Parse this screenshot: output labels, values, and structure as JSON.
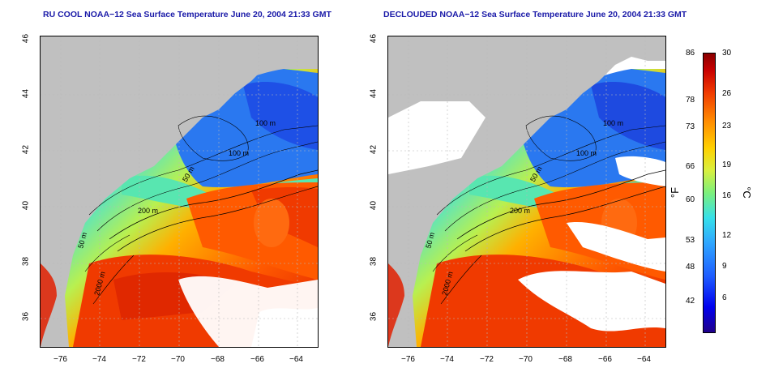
{
  "titles": {
    "left": "RU COOL NOAA−12 Sea Surface Temperature June 20, 2004 21:33 GMT",
    "right": "DECLOUDED NOAA−12 Sea Surface Temperature June 20, 2004 21:33 GMT"
  },
  "axes": {
    "x_ticks": [
      "−76",
      "−74",
      "−72",
      "−70",
      "−68",
      "−66",
      "−64"
    ],
    "y_ticks": [
      "46",
      "44",
      "42",
      "40",
      "38",
      "36"
    ]
  },
  "contours": {
    "c50": "50 m",
    "c100": "100 m",
    "c200": "200 m",
    "c2000": "2000 m"
  },
  "colorbar": {
    "fahrenheit_ticks": [
      "86",
      "78",
      "73",
      "66",
      "60",
      "53",
      "48",
      "42"
    ],
    "celsius_ticks": [
      "30",
      "26",
      "23",
      "19",
      "16",
      "12",
      "9",
      "6"
    ],
    "unit_f": "°F",
    "unit_c": "°C",
    "colors": [
      "#1f0089",
      "#0000ee",
      "#2fa6ff",
      "#36e0ea",
      "#7cf07c",
      "#ffd100",
      "#ff8a00",
      "#f03a00",
      "#8a0000"
    ]
  },
  "map": {
    "land_color": "#c0c0c0",
    "cloud_color": "#ffffff",
    "lon_range": [
      -77,
      -63
    ],
    "lat_range": [
      35,
      46
    ]
  }
}
